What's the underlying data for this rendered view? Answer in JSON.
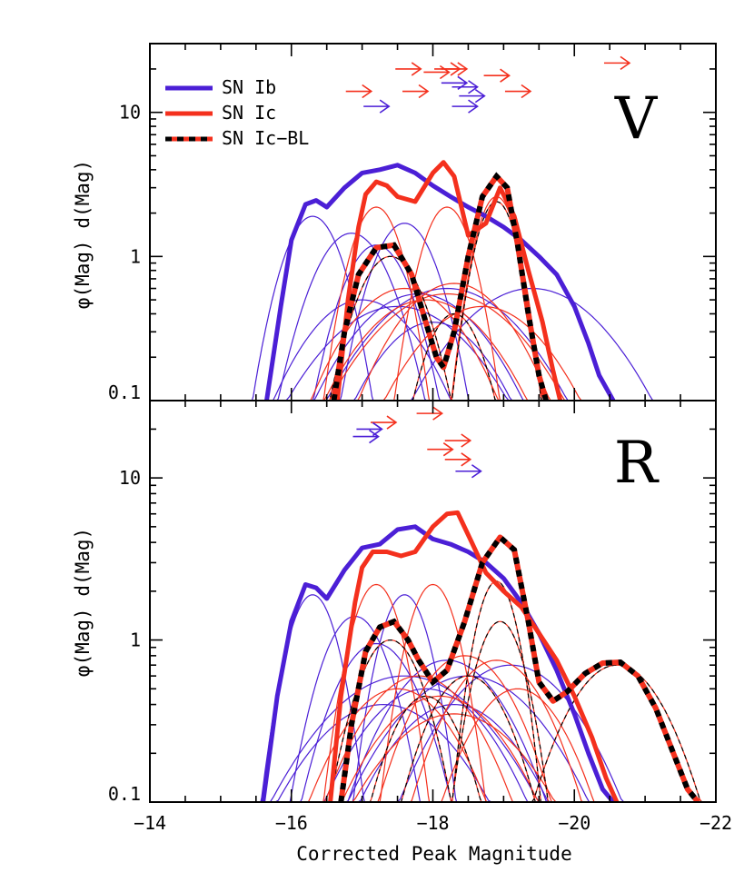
{
  "chart_data": [
    {
      "panel": "V",
      "type": "line",
      "band_label": "V",
      "xlabel": "",
      "ylabel": "φ(Mag) d(Mag)",
      "xlim": [
        -14,
        -22
      ],
      "ylim": [
        0.1,
        30
      ],
      "yscale": "log",
      "x_ticks": [],
      "y_ticks": [
        "10",
        "1",
        "0.1"
      ],
      "legend": {
        "placement": "top-left",
        "entries": [
          {
            "label": "SN Ib",
            "color": "#4b1fd6",
            "style": "solid"
          },
          {
            "label": "SN Ic",
            "color": "#f4301d",
            "style": "solid"
          },
          {
            "label": "SN Ic−BL",
            "color": "#f4301d",
            "style": "dashed-black"
          }
        ]
      },
      "series": [
        {
          "name": "SN Ib",
          "color": "#4b1fd6",
          "width": 5,
          "x": [
            -15.65,
            -15.85,
            -16.0,
            -16.2,
            -16.35,
            -16.5,
            -16.75,
            -17.0,
            -17.25,
            -17.5,
            -17.75,
            -18.0,
            -18.25,
            -18.5,
            -18.75,
            -19.0,
            -19.25,
            -19.5,
            -19.75,
            -20.0,
            -20.2,
            -20.35,
            -20.55
          ],
          "y": [
            0.1,
            0.45,
            1.3,
            2.3,
            2.45,
            2.2,
            3.0,
            3.8,
            4.0,
            4.3,
            3.8,
            3.1,
            2.6,
            2.2,
            1.9,
            1.6,
            1.3,
            1.0,
            0.75,
            0.45,
            0.25,
            0.15,
            0.1
          ]
        },
        {
          "name": "SN Ic",
          "color": "#f4301d",
          "width": 5,
          "x": [
            -16.65,
            -16.8,
            -16.95,
            -17.05,
            -17.2,
            -17.35,
            -17.5,
            -17.75,
            -18.0,
            -18.15,
            -18.3,
            -18.5,
            -18.75,
            -18.95,
            -19.15,
            -19.35,
            -19.55,
            -19.7,
            -19.8
          ],
          "y": [
            0.1,
            0.5,
            1.6,
            2.7,
            3.3,
            3.1,
            2.6,
            2.4,
            3.8,
            4.5,
            3.6,
            1.4,
            1.7,
            3.0,
            1.9,
            0.8,
            0.35,
            0.16,
            0.1
          ]
        },
        {
          "name": "SN Ic−BL",
          "color": "#f4301d",
          "width": 6,
          "dashed_black": true,
          "x": [
            -16.6,
            -16.75,
            -16.95,
            -17.2,
            -17.45,
            -17.7,
            -17.9,
            -18.05,
            -18.15,
            -18.3,
            -18.5,
            -18.7,
            -18.9,
            -19.05,
            -19.2,
            -19.35,
            -19.5,
            -19.6
          ],
          "y": [
            0.1,
            0.3,
            0.75,
            1.15,
            1.2,
            0.75,
            0.35,
            0.2,
            0.17,
            0.3,
            1.0,
            2.6,
            3.6,
            3.0,
            1.2,
            0.4,
            0.15,
            0.1
          ]
        }
      ],
      "components": {
        "Ib": [
          [
            -16.3,
            1.9,
            0.35
          ],
          [
            -16.85,
            1.45,
            0.45
          ],
          [
            -17.2,
            1.2,
            0.4
          ],
          [
            -17.6,
            1.7,
            0.38
          ],
          [
            -17.8,
            0.55,
            0.8
          ],
          [
            -18.2,
            0.6,
            0.9
          ],
          [
            -17.5,
            0.45,
            0.9
          ],
          [
            -19.4,
            0.6,
            0.9
          ],
          [
            -18.0,
            0.35,
            0.7
          ],
          [
            -17.0,
            0.5,
            0.7
          ]
        ],
        "Ic": [
          [
            -17.2,
            2.2,
            0.3
          ],
          [
            -17.6,
            0.6,
            0.7
          ],
          [
            -18.2,
            2.2,
            0.3
          ],
          [
            -18.3,
            0.65,
            0.7
          ],
          [
            -18.9,
            2.6,
            0.25
          ],
          [
            -17.9,
            0.5,
            0.8
          ],
          [
            -18.7,
            0.45,
            0.8
          ],
          [
            -18.2,
            0.55,
            0.9
          ]
        ],
        "IcBL": [
          [
            -17.4,
            1.0,
            0.4
          ],
          [
            -18.9,
            2.4,
            0.25
          ],
          [
            -18.3,
            0.4,
            0.35
          ]
        ]
      },
      "lower_limits": [
        {
          "x": -16.95,
          "y": 14,
          "color": "#f4301d"
        },
        {
          "x": -17.65,
          "y": 20,
          "color": "#f4301d"
        },
        {
          "x": -17.75,
          "y": 14,
          "color": "#f4301d"
        },
        {
          "x": -18.05,
          "y": 19,
          "color": "#f4301d"
        },
        {
          "x": -18.2,
          "y": 20,
          "color": "#f4301d"
        },
        {
          "x": -18.3,
          "y": 20,
          "color": "#f4301d"
        },
        {
          "x": -18.9,
          "y": 18,
          "color": "#f4301d"
        },
        {
          "x": -19.2,
          "y": 14,
          "color": "#f4301d"
        },
        {
          "x": -20.6,
          "y": 22,
          "color": "#f4301d"
        },
        {
          "x": -17.2,
          "y": 11,
          "color": "#4b1fd6"
        },
        {
          "x": -18.3,
          "y": 16,
          "color": "#4b1fd6"
        },
        {
          "x": -18.45,
          "y": 15,
          "color": "#4b1fd6"
        },
        {
          "x": -18.55,
          "y": 13,
          "color": "#4b1fd6"
        },
        {
          "x": -18.45,
          "y": 11,
          "color": "#4b1fd6"
        }
      ]
    },
    {
      "panel": "R",
      "type": "line",
      "band_label": "R",
      "xlabel": "Corrected Peak Magnitude",
      "ylabel": "φ(Mag) d(Mag)",
      "xlim": [
        -14,
        -22
      ],
      "ylim": [
        0.1,
        30
      ],
      "yscale": "log",
      "x_ticks": [
        "−14",
        "−16",
        "−18",
        "−20",
        "−22"
      ],
      "y_ticks": [
        "10",
        "1",
        "0.1"
      ],
      "series": [
        {
          "name": "SN Ib",
          "color": "#4b1fd6",
          "width": 5,
          "x": [
            -15.6,
            -15.8,
            -16.0,
            -16.2,
            -16.35,
            -16.5,
            -16.75,
            -17.0,
            -17.25,
            -17.5,
            -17.75,
            -18.0,
            -18.25,
            -18.5,
            -18.75,
            -19.0,
            -19.25,
            -19.5,
            -19.75,
            -20.0,
            -20.2,
            -20.4,
            -20.55
          ],
          "y": [
            0.1,
            0.45,
            1.3,
            2.2,
            2.1,
            1.8,
            2.7,
            3.7,
            3.9,
            4.8,
            5.0,
            4.2,
            3.9,
            3.5,
            3.0,
            2.4,
            1.7,
            1.1,
            0.65,
            0.35,
            0.2,
            0.12,
            0.1
          ]
        },
        {
          "name": "SN Ic",
          "color": "#f4301d",
          "width": 5,
          "x": [
            -16.55,
            -16.7,
            -16.9,
            -17.0,
            -17.15,
            -17.35,
            -17.55,
            -17.75,
            -18.0,
            -18.2,
            -18.35,
            -18.55,
            -18.75,
            -19.0,
            -19.25,
            -19.5,
            -19.75,
            -20.0,
            -20.25,
            -20.45,
            -20.6
          ],
          "y": [
            0.1,
            0.45,
            1.7,
            2.8,
            3.5,
            3.5,
            3.3,
            3.5,
            5.0,
            6.0,
            6.1,
            4.0,
            2.6,
            2.0,
            1.6,
            1.1,
            0.75,
            0.45,
            0.25,
            0.14,
            0.1
          ]
        },
        {
          "name": "SN Ic−BL",
          "color": "#f4301d",
          "width": 6,
          "dashed_black": true,
          "x": [
            -16.7,
            -16.85,
            -17.05,
            -17.25,
            -17.45,
            -17.65,
            -17.8,
            -18.0,
            -18.2,
            -18.45,
            -18.7,
            -18.95,
            -19.15,
            -19.35,
            -19.5,
            -19.7,
            -19.9,
            -20.15,
            -20.4,
            -20.65,
            -20.9,
            -21.15,
            -21.4,
            -21.6,
            -21.75
          ],
          "y": [
            0.1,
            0.3,
            0.85,
            1.2,
            1.3,
            1.0,
            0.75,
            0.55,
            0.65,
            1.3,
            3.0,
            4.3,
            3.6,
            1.3,
            0.55,
            0.42,
            0.48,
            0.62,
            0.72,
            0.73,
            0.6,
            0.38,
            0.2,
            0.12,
            0.1
          ]
        }
      ],
      "components": {
        "Ib": [
          [
            -16.3,
            1.9,
            0.3
          ],
          [
            -16.9,
            1.4,
            0.4
          ],
          [
            -17.6,
            1.9,
            0.3
          ],
          [
            -17.2,
            0.95,
            0.5
          ],
          [
            -18.2,
            0.75,
            0.7
          ],
          [
            -17.9,
            0.5,
            0.8
          ],
          [
            -18.5,
            0.6,
            0.9
          ],
          [
            -17.6,
            0.6,
            1.0
          ],
          [
            -19.1,
            0.7,
            0.8
          ],
          [
            -18.3,
            0.4,
            0.8
          ],
          [
            -17.3,
            0.4,
            0.9
          ]
        ],
        "Ic": [
          [
            -17.2,
            2.2,
            0.3
          ],
          [
            -18.0,
            2.2,
            0.3
          ],
          [
            -18.45,
            0.8,
            0.6
          ],
          [
            -17.8,
            0.6,
            0.7
          ],
          [
            -18.9,
            0.75,
            0.6
          ],
          [
            -18.1,
            0.45,
            0.8
          ],
          [
            -17.5,
            0.5,
            0.7
          ],
          [
            -19.2,
            0.5,
            0.6
          ],
          [
            -18.3,
            0.35,
            0.9
          ]
        ],
        "IcBL": [
          [
            -17.4,
            1.0,
            0.4
          ],
          [
            -18.9,
            2.3,
            0.25
          ],
          [
            -18.95,
            1.3,
            0.3
          ],
          [
            -18.5,
            0.6,
            0.5
          ],
          [
            -20.6,
            0.7,
            0.6
          ],
          [
            -17.9,
            0.45,
            0.45
          ]
        ]
      },
      "lower_limits": [
        {
          "x": -17.3,
          "y": 22,
          "color": "#f4301d"
        },
        {
          "x": -17.95,
          "y": 25,
          "color": "#f4301d"
        },
        {
          "x": -18.1,
          "y": 15,
          "color": "#f4301d"
        },
        {
          "x": -18.35,
          "y": 17,
          "color": "#f4301d"
        },
        {
          "x": -18.35,
          "y": 13,
          "color": "#f4301d"
        },
        {
          "x": -17.1,
          "y": 20,
          "color": "#4b1fd6"
        },
        {
          "x": -17.05,
          "y": 18,
          "color": "#4b1fd6"
        },
        {
          "x": -18.5,
          "y": 11,
          "color": "#4b1fd6"
        }
      ]
    }
  ]
}
